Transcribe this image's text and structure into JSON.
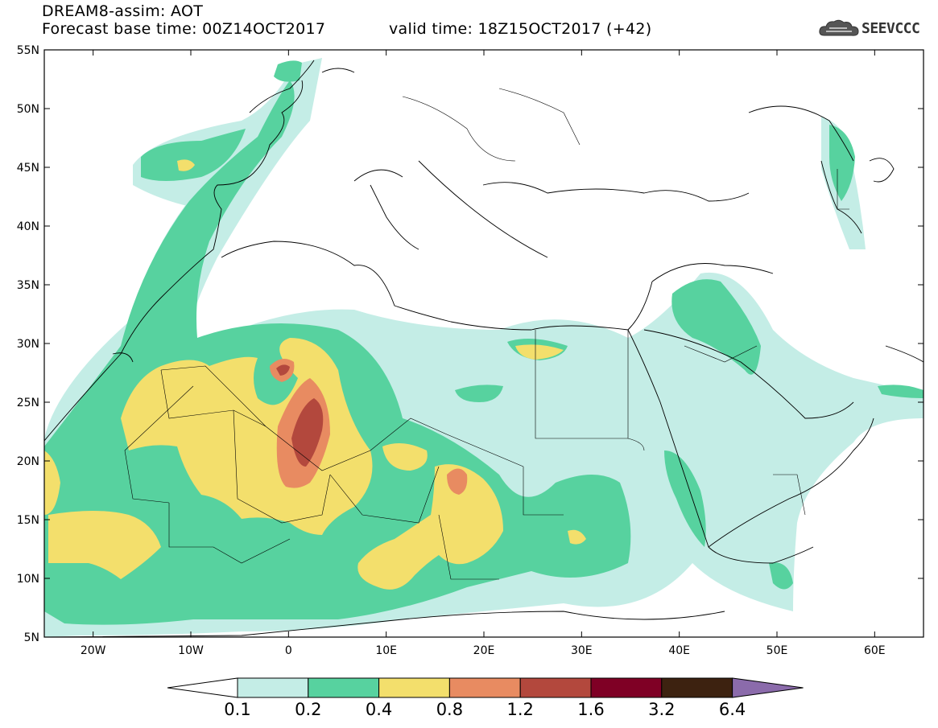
{
  "header": {
    "title": "DREAM8-assim: AOT",
    "base_label": "Forecast base time: 00Z14OCT2017",
    "valid_label": "valid time: 18Z15OCT2017 (+42)",
    "logo_text": "SEEVCCC"
  },
  "map": {
    "lon_range": [
      -25,
      65
    ],
    "lat_range": [
      5,
      55
    ],
    "lat_ticks": [
      "55N",
      "50N",
      "45N",
      "40N",
      "35N",
      "30N",
      "25N",
      "20N",
      "15N",
      "10N",
      "5N"
    ],
    "lon_ticks": [
      "20W",
      "10W",
      "0",
      "10E",
      "20E",
      "30E",
      "40E",
      "50E",
      "60E"
    ],
    "variable": "AOT"
  },
  "colorbar": {
    "labels": [
      "0.1",
      "0.2",
      "0.4",
      "0.8",
      "1.2",
      "1.6",
      "3.2",
      "6.4"
    ],
    "colors": [
      "#ffffff",
      "#c4ede6",
      "#57d29f",
      "#f3df6c",
      "#e88b61",
      "#b3483d",
      "#7f0025",
      "#3d2210",
      "#8b6bab"
    ]
  }
}
